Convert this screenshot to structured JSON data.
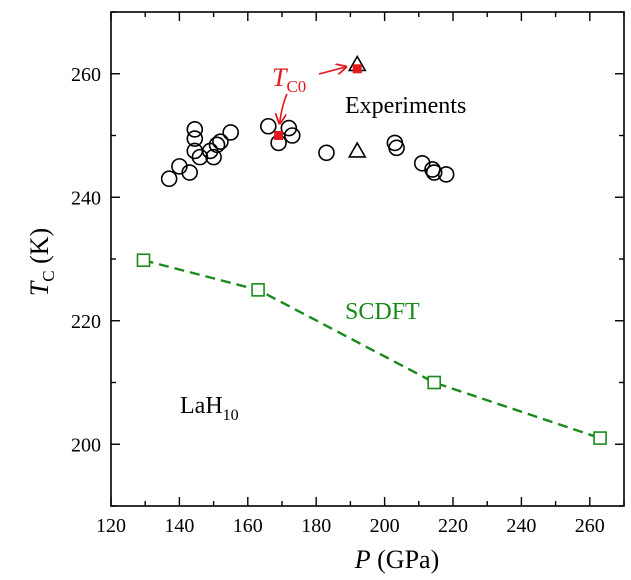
{
  "chart_data": {
    "type": "scatter",
    "xlim": [
      120,
      270
    ],
    "ylim": [
      190,
      270
    ],
    "x_ticks": [
      120,
      140,
      160,
      180,
      200,
      220,
      240,
      260
    ],
    "y_ticks": [
      200,
      220,
      240,
      260
    ],
    "xlabel": {
      "italic": "P",
      "rest": " (GPa)"
    },
    "ylabel": {
      "italic": "T",
      "sub": "C",
      "rest": " (K)"
    },
    "series": [
      {
        "name": "Experiments",
        "marker": "circle",
        "color": "#000000",
        "points": [
          [
            137,
            243
          ],
          [
            140,
            245
          ],
          [
            143,
            244
          ],
          [
            144.5,
            251
          ],
          [
            144.5,
            249.5
          ],
          [
            144.5,
            247.5
          ],
          [
            146,
            246.5
          ],
          [
            149,
            247.5
          ],
          [
            150,
            246.5
          ],
          [
            151,
            248.5
          ],
          [
            152,
            249
          ],
          [
            155,
            250.5
          ],
          [
            166,
            251.5
          ],
          [
            169,
            248.8
          ],
          [
            172,
            251.2
          ],
          [
            173,
            250
          ],
          [
            183,
            247.2
          ],
          [
            203,
            248.8
          ],
          [
            203.5,
            248
          ],
          [
            211,
            245.5
          ],
          [
            214,
            244.5
          ],
          [
            214.5,
            244
          ],
          [
            218,
            243.7
          ]
        ]
      },
      {
        "name": "",
        "marker": "triangle",
        "color": "#000000",
        "points": [
          [
            192,
            261.5
          ],
          [
            192,
            247.5
          ]
        ]
      },
      {
        "name": "T_C0",
        "marker": "filled-square",
        "color": "#e41a1c",
        "points": [
          [
            169,
            250
          ],
          [
            192,
            260.8
          ]
        ]
      },
      {
        "name": "SCDFT",
        "marker": "open-square",
        "line": "dashed",
        "color": "#1a8a1a",
        "points": [
          [
            129.5,
            229.8
          ],
          [
            163,
            225
          ],
          [
            214.5,
            210
          ],
          [
            263,
            201
          ]
        ]
      }
    ],
    "annotations": {
      "experiments_label": "Experiments",
      "scdft_label": "SCDFT",
      "material": {
        "base": "LaH",
        "sub": "10"
      },
      "tc0": {
        "italic": "T",
        "sub": "C0"
      }
    }
  }
}
